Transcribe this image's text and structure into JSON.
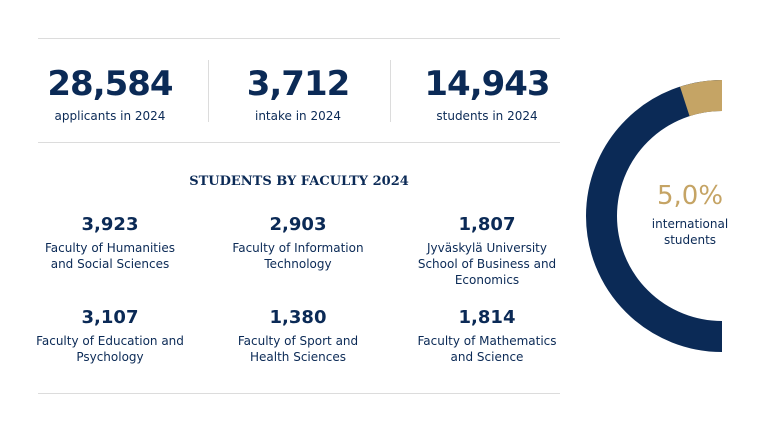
{
  "stats": [
    {
      "value": "28,584",
      "label": "applicants in 2024"
    },
    {
      "value": "3,712",
      "label": "intake in 2024"
    },
    {
      "value": "14,943",
      "label": "students in 2024"
    }
  ],
  "faculties": {
    "title": "STUDENTS BY FACULTY 2024",
    "items": [
      {
        "value": "3,923",
        "label": "Faculty of Humanities and Social Sciences"
      },
      {
        "value": "2,903",
        "label": "Faculty of Information Technology"
      },
      {
        "value": "1,807",
        "label": "Jyväskylä University School of Business and Economics"
      },
      {
        "value": "3,107",
        "label": "Faculty of Education and Psychology"
      },
      {
        "value": "1,380",
        "label": "Faculty of Sport and Health Sciences"
      },
      {
        "value": "1,814",
        "label": "Faculty of Mathematics and Science"
      }
    ]
  },
  "chart_data": {
    "type": "donut",
    "values": [
      5.0
    ],
    "value_labels": [
      "5,0%"
    ],
    "caption": "international students",
    "color": "#c5a465",
    "rest_color": "#0b2a56"
  }
}
